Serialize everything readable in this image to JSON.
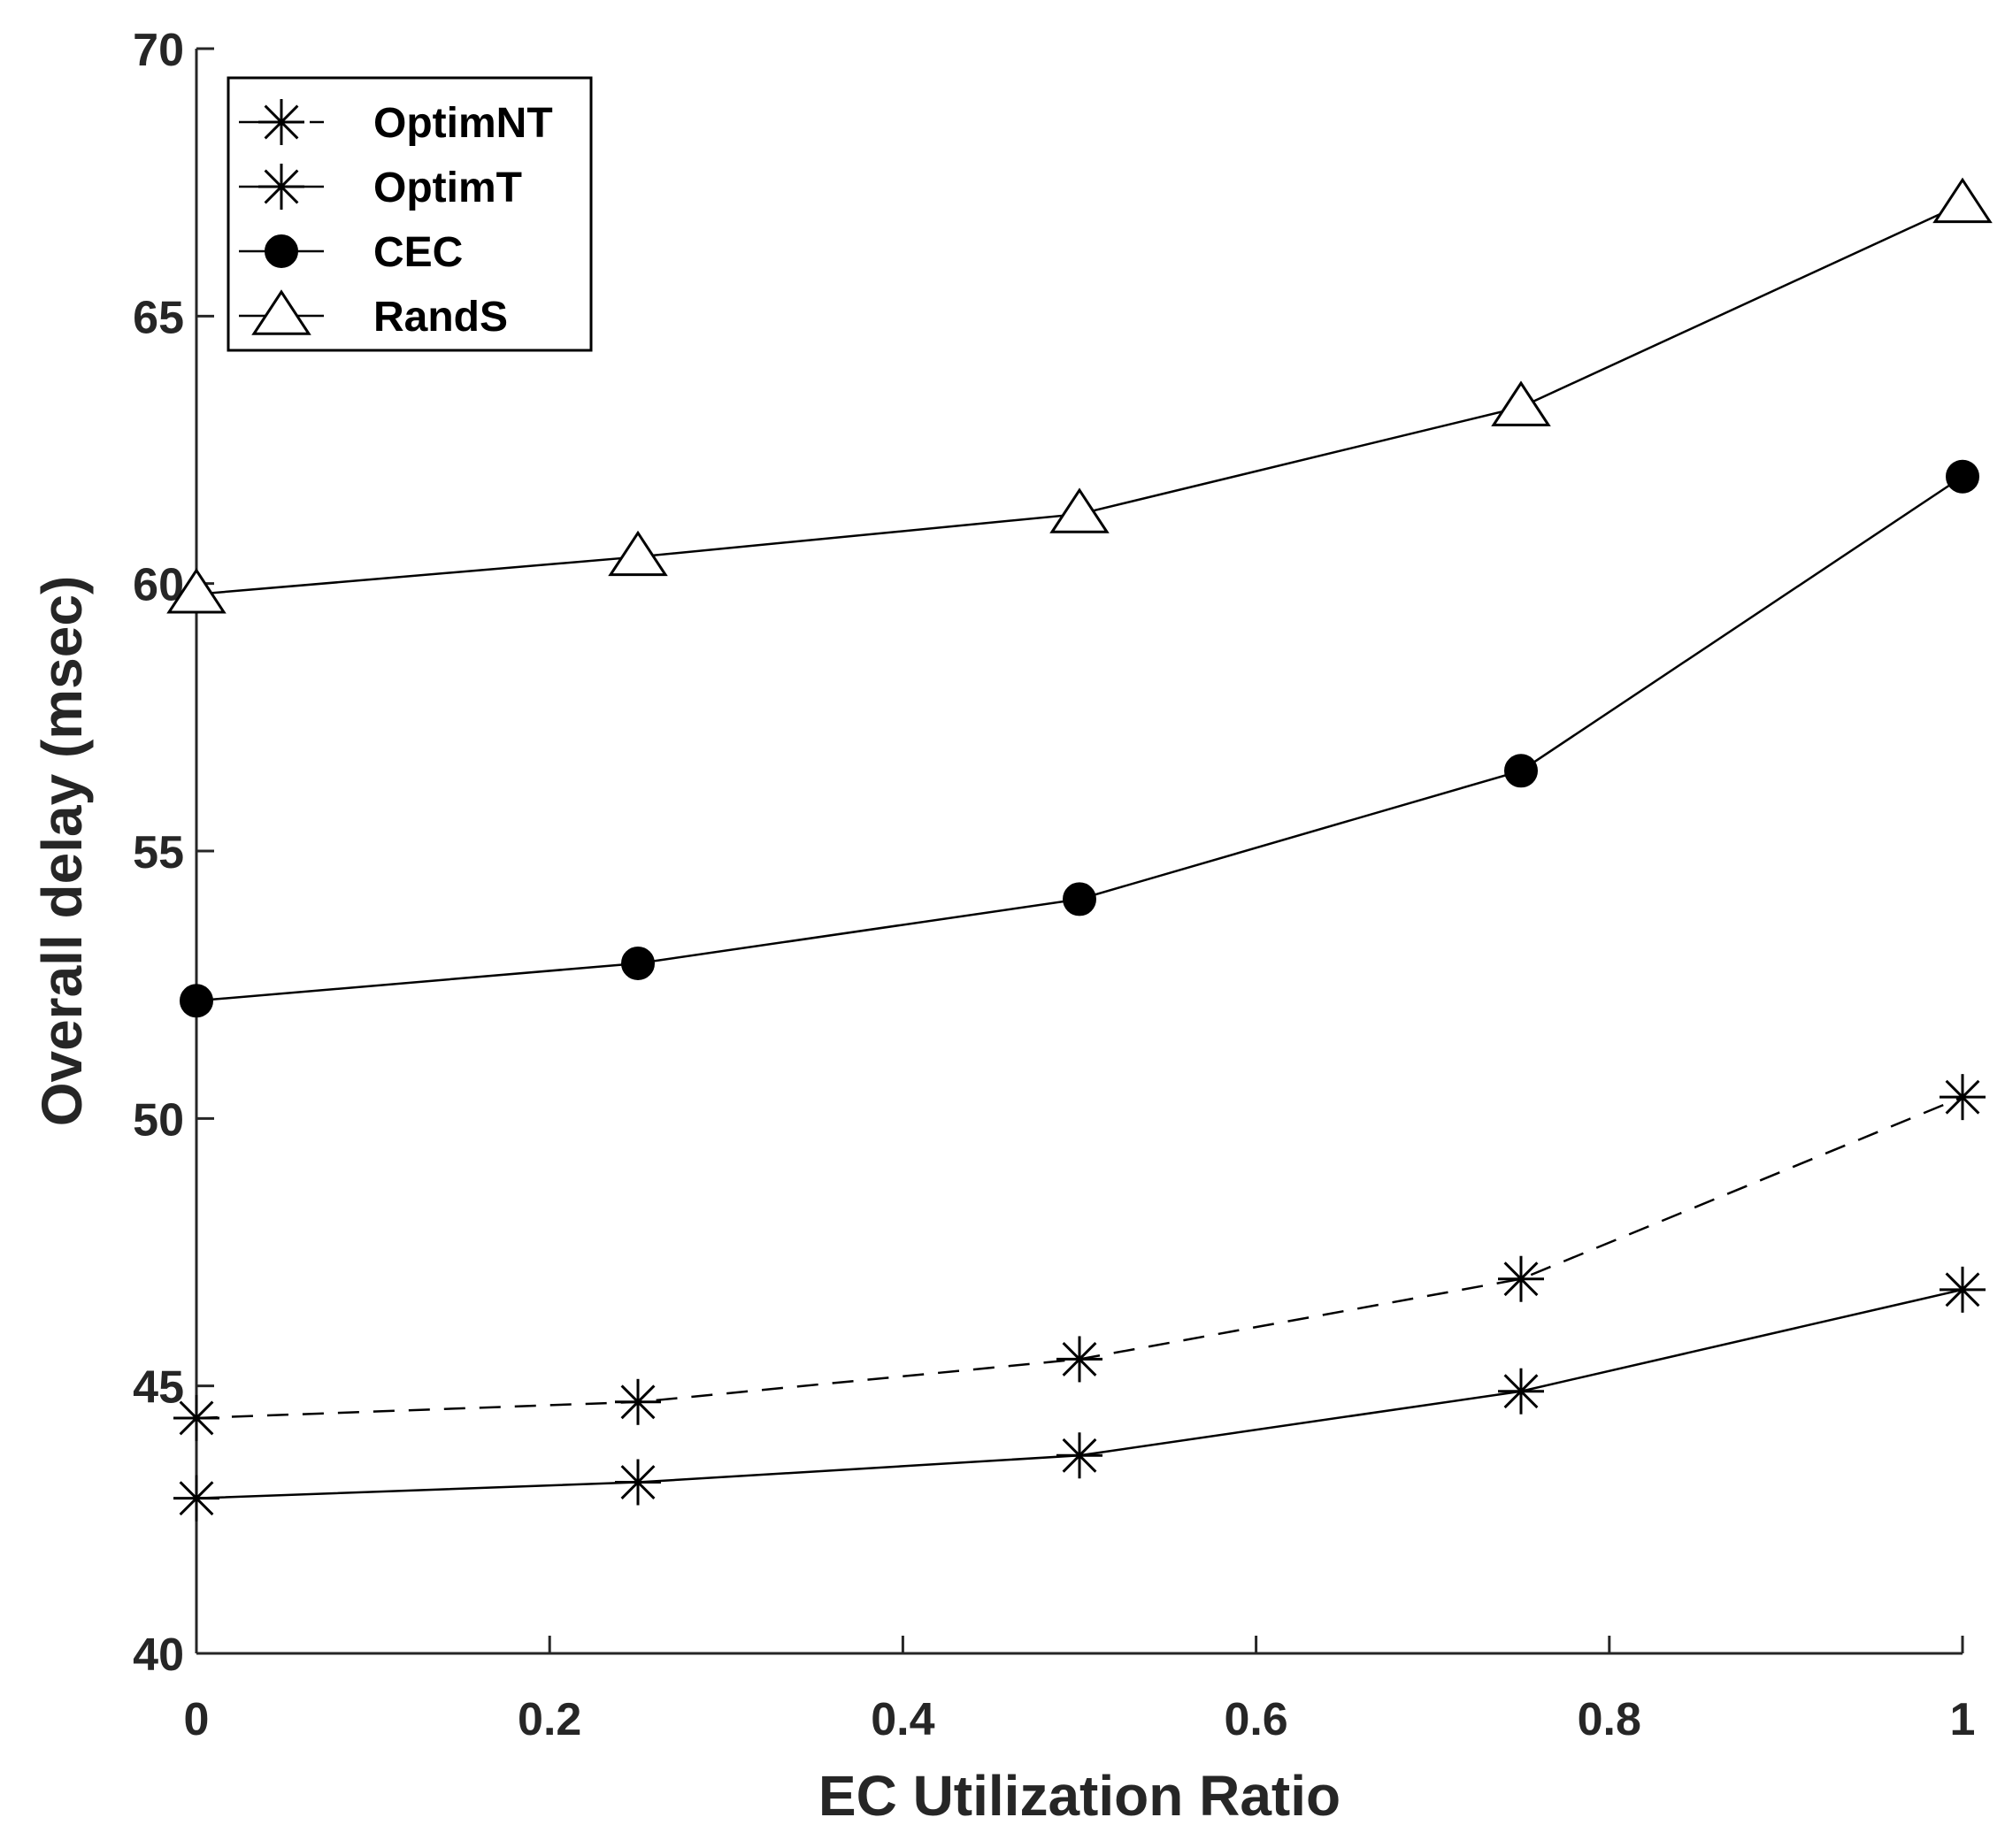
{
  "chart_data": {
    "type": "line",
    "xlabel": "EC Utilization Ratio",
    "ylabel": "Overall delay (msec)",
    "xlim": [
      0,
      1
    ],
    "ylim": [
      40,
      70
    ],
    "xticks": [
      0,
      0.2,
      0.4,
      0.6,
      0.8,
      1
    ],
    "xtick_labels": [
      "0",
      "0.2",
      "0.4",
      "0.6",
      "0.8",
      "1"
    ],
    "yticks": [
      40,
      45,
      50,
      55,
      60,
      65,
      70
    ],
    "ytick_labels": [
      "40",
      "45",
      "50",
      "55",
      "60",
      "65",
      "70"
    ],
    "grid": false,
    "legend_position": "top-left",
    "x": [
      0,
      0.25,
      0.5,
      0.75,
      1
    ],
    "series": [
      {
        "name": "OptimNT",
        "marker": "asterisk",
        "line": "dashed",
        "values": [
          44.4,
          44.7,
          45.5,
          47.0,
          50.4
        ]
      },
      {
        "name": "OptimT",
        "marker": "asterisk",
        "line": "solid",
        "values": [
          42.9,
          43.2,
          43.7,
          44.9,
          46.8
        ]
      },
      {
        "name": "CEC",
        "marker": "filled-circle",
        "line": "solid",
        "values": [
          52.2,
          52.9,
          54.1,
          56.5,
          62.0
        ]
      },
      {
        "name": "RandS",
        "marker": "open-triangle",
        "line": "solid",
        "values": [
          59.8,
          60.5,
          61.3,
          63.3,
          67.1
        ]
      }
    ],
    "colors": {
      "line": "#000000",
      "axis": "#262626",
      "background": "#ffffff"
    }
  }
}
